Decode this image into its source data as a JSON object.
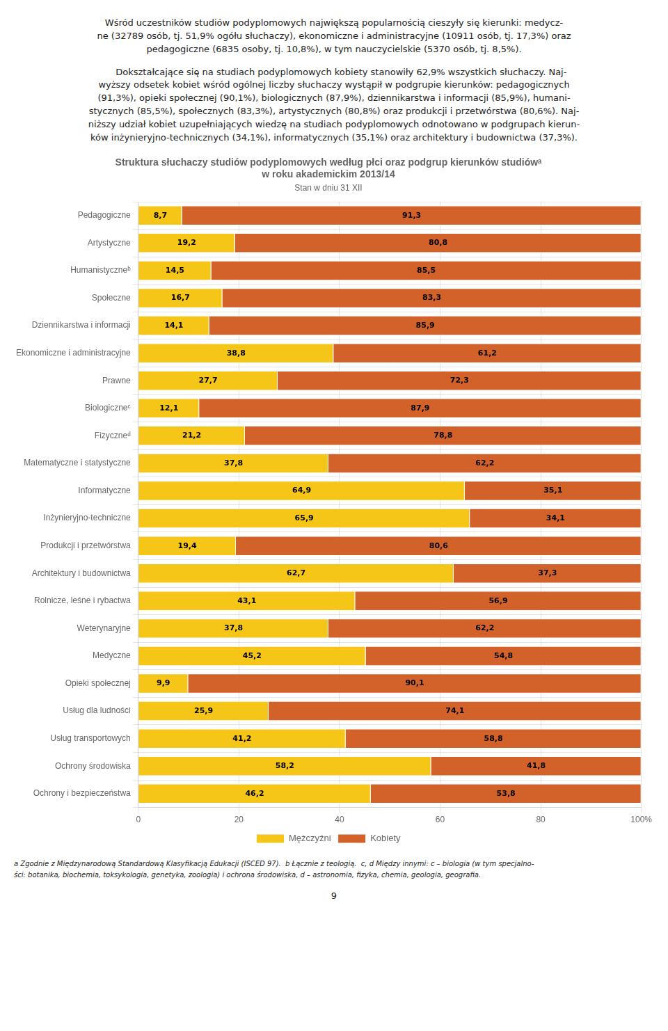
{
  "text_above": [
    [
      "Wśród uczestników studiów podyplomowych największą popularnością cieszyły się kierunki: medycz-",
      "ne (32789 osób, tj. 51,9% ogółu słuchaczy), ekonomiczne i administracyjne (10911 osób, tj. 17,3%) oraz",
      "pedagogiczne (6835 osoby, tj. 10,8%), w tym nauczycielskie (5370 osób, tj. 8,5%)."
    ],
    [
      "     Dokształcające się na studiach podyplomowych kobiety stanowiły 62,9% wszystkich słuchaczy. Naj-",
      "wyższy odsetek kobiet wśród ogólnej liczby słuchaczy wystąpił w podgrupie kierunków: pedagogicznych",
      "(91,3%), opieki społecznej (90,1%), biologicznych (87,9%), dziennikarstwa i informacji (85,9%), humani-",
      "stycznych (85,5%), społecznych (83,3%), artystycznych (80,8%) oraz produkcji i przetwórstwa (80,6%). Naj-",
      "niższy udział kobiet uzupełniających wiedzę na studiach podyplomowych odnotowano w podgrupach kierun-",
      "ków inżynieryjno-technicznych (34,1%), informatycznych (35,1%) oraz architektury i budownictwa (37,3%)."
    ]
  ],
  "footnotes": [
    "a Zgodnie z Międzynarodową Standardową Klasyfikacją Edukacji (ISCED 97).  b Łącznie z teologią.  c, d Między innymi: c – biologia (w tym specjalno-",
    "ści: botanika, biochemia, toksykologia, genetyka, zoologia) i ochrona środowiska, d – astronomia, fizyka, chemia, geologia, geografia."
  ],
  "page_number": "9",
  "chart_data": {
    "type": "bar",
    "orientation": "horizontal",
    "stacked": true,
    "data_labels": true,
    "grid": true,
    "legend": "bottom",
    "title": [
      "Struktura słuchaczy studiów podyplomowych według płci oraz podgrup kierunków studiówᵃ",
      "w roku akademickim 2013/14"
    ],
    "subtitle": "Stan w dniu 31 XII",
    "categories": [
      "Pedagogiczne",
      "Artystyczne",
      "Humanistyczneᵇ",
      "Społeczne",
      "Dziennikarstwa i informacji",
      "Ekonomiczne i administracyjne",
      "Prawne",
      "Biologiczneᶜ",
      "Fizyczneᵈ",
      "Matematyczne i statystyczne",
      "Informatyczne",
      "Inżynieryjno-techniczne",
      "Produkcji i przetwórstwa",
      "Architektury i budownictwa",
      "Rolnicze, leśne i rybactwa",
      "Weterynaryjne",
      "Medyczne",
      "Opieki społecznej",
      "Usług dla ludności",
      "Usług transportowych",
      "Ochrony środowiska",
      "Ochrony i bezpieczeństwa"
    ],
    "series": [
      {
        "name": "Mężczyźni",
        "color": "#F5C518",
        "values": [
          8.7,
          19.2,
          14.5,
          16.7,
          14.1,
          38.8,
          27.7,
          12.1,
          21.2,
          37.8,
          64.9,
          65.9,
          19.4,
          62.7,
          43.1,
          37.8,
          45.2,
          9.9,
          25.9,
          41.2,
          58.2,
          46.2
        ],
        "value_labels": [
          "8,7",
          "19,2",
          "14,5",
          "16,7",
          "14,1",
          "38,8",
          "27,7",
          "12,1",
          "21,2",
          "37,8",
          "64,9",
          "65,9",
          "19,4",
          "62,7",
          "43,1",
          "37,8",
          "45,2",
          "9,9",
          "25,9",
          "41,2",
          "58,2",
          "46,2"
        ]
      },
      {
        "name": "Kobiety",
        "color": "#D2622A",
        "values": [
          91.3,
          80.8,
          85.5,
          83.3,
          85.9,
          61.2,
          72.3,
          87.9,
          78.8,
          62.2,
          35.1,
          34.1,
          80.6,
          37.3,
          56.9,
          62.2,
          54.8,
          90.1,
          74.1,
          58.8,
          41.8,
          53.8
        ],
        "value_labels": [
          "91,3",
          "80,8",
          "85,5",
          "83,3",
          "85,9",
          "61,2",
          "72,3",
          "87,9",
          "78,8",
          "62,2",
          "35,1",
          "34,1",
          "80,6",
          "37,3",
          "56,9",
          "62,2",
          "54,8",
          "90,1",
          "74,1",
          "58,8",
          "41,8",
          "53,8"
        ]
      }
    ],
    "xlim": [
      0,
      100
    ],
    "xticks": [
      0,
      20,
      40,
      60,
      80,
      {
        "value": 100,
        "label": "100%"
      }
    ]
  }
}
